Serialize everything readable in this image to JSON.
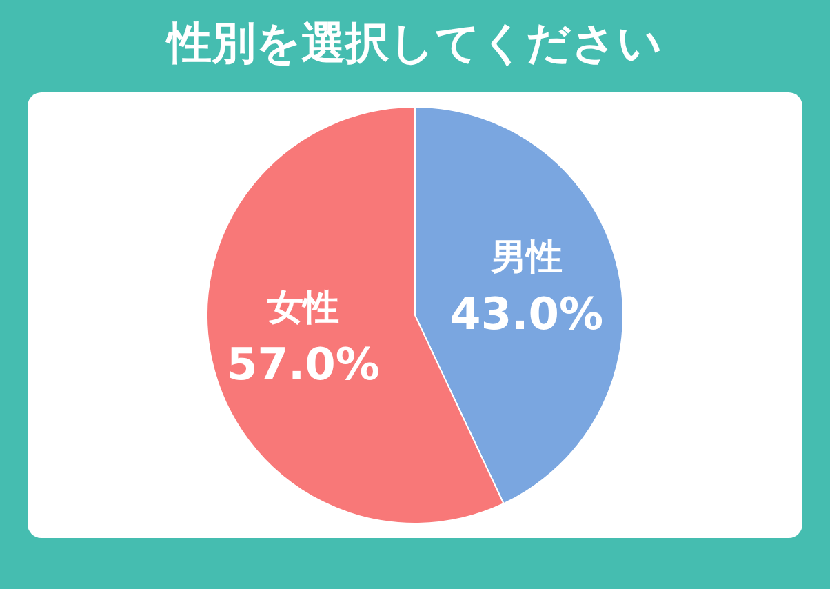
{
  "chart_data": {
    "type": "pie",
    "title": "性別を選択してください",
    "categories": [
      "男性",
      "女性"
    ],
    "values": [
      43.0,
      57.0
    ],
    "value_labels": [
      "43.0%",
      "57.0%"
    ],
    "colors": [
      "#7aa6e0",
      "#f87878"
    ],
    "legend": false
  }
}
